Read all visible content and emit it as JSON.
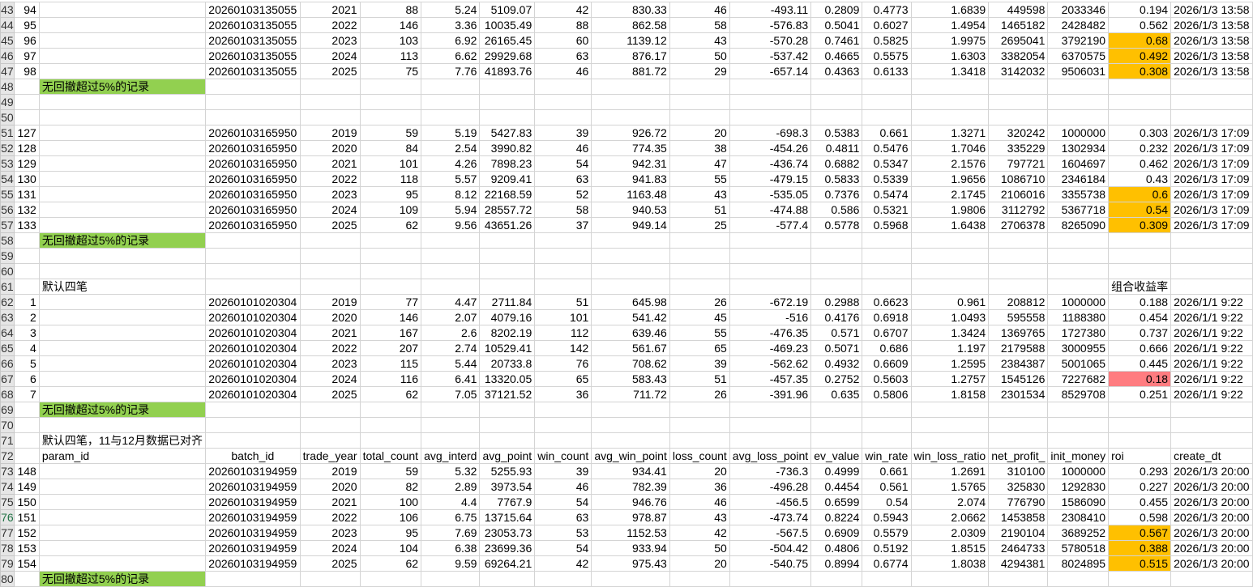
{
  "active_row": "76",
  "colors": {
    "label_fill": "#92D050",
    "orange_fill": "#FFC000",
    "red_fill": "#FF7C80"
  },
  "columns": [
    "A",
    "B",
    "C",
    "D",
    "E",
    "F",
    "G",
    "H",
    "I",
    "J",
    "K",
    "L",
    "M",
    "N",
    "O",
    "P",
    "Q",
    "R"
  ],
  "rows": [
    {
      "n": "43",
      "c": [
        "94",
        "",
        "20260103135055",
        "2021",
        "88",
        "5.24",
        "5109.07",
        "42",
        "830.33",
        "46",
        "-493.11",
        "0.2809",
        "0.4773",
        "1.6839",
        "449598",
        "2033346",
        "0.194",
        "2026/1/3 13:58"
      ]
    },
    {
      "n": "44",
      "c": [
        "95",
        "",
        "20260103135055",
        "2022",
        "146",
        "3.36",
        "10035.49",
        "88",
        "862.58",
        "58",
        "-576.83",
        "0.5041",
        "0.6027",
        "1.4954",
        "1465182",
        "2428482",
        "0.562",
        "2026/1/3 13:58"
      ]
    },
    {
      "n": "45",
      "c": [
        "96",
        "",
        "20260103135055",
        "2023",
        "103",
        "6.92",
        "26165.45",
        "60",
        "1139.12",
        "43",
        "-570.28",
        "0.7461",
        "0.5825",
        "1.9975",
        "2695041",
        "3792190",
        "0.68",
        "2026/1/3 13:58"
      ],
      "fill": {
        "Q": "orange"
      }
    },
    {
      "n": "46",
      "c": [
        "97",
        "",
        "20260103135055",
        "2024",
        "113",
        "6.62",
        "29929.68",
        "63",
        "876.17",
        "50",
        "-537.42",
        "0.4665",
        "0.5575",
        "1.6303",
        "3382054",
        "6370575",
        "0.492",
        "2026/1/3 13:58"
      ],
      "fill": {
        "Q": "orange"
      }
    },
    {
      "n": "47",
      "c": [
        "98",
        "",
        "20260103135055",
        "2025",
        "75",
        "7.76",
        "41893.76",
        "46",
        "881.72",
        "29",
        "-657.14",
        "0.4363",
        "0.6133",
        "1.3418",
        "3142032",
        "9506031",
        "0.308",
        "2026/1/3 13:58"
      ],
      "fill": {
        "Q": "orange"
      }
    },
    {
      "n": "48",
      "c": [
        "",
        "无回撤超过5%的记录",
        "",
        "",
        "",
        "",
        "",
        "",
        "",
        "",
        "",
        "",
        "",
        "",
        "",
        "",
        "",
        ""
      ],
      "fill": {
        "B": "label"
      }
    },
    {
      "n": "49",
      "c": [
        "",
        "",
        "",
        "",
        "",
        "",
        "",
        "",
        "",
        "",
        "",
        "",
        "",
        "",
        "",
        "",
        "",
        ""
      ]
    },
    {
      "n": "50",
      "c": [
        "",
        "",
        "",
        "",
        "",
        "",
        "",
        "",
        "",
        "",
        "",
        "",
        "",
        "",
        "",
        "",
        "",
        ""
      ]
    },
    {
      "n": "51",
      "c": [
        "127",
        "",
        "20260103165950",
        "2019",
        "59",
        "5.19",
        "5427.83",
        "39",
        "926.72",
        "20",
        "-698.3",
        "0.5383",
        "0.661",
        "1.3271",
        "320242",
        "1000000",
        "0.303",
        "2026/1/3 17:09"
      ]
    },
    {
      "n": "52",
      "c": [
        "128",
        "",
        "20260103165950",
        "2020",
        "84",
        "2.54",
        "3990.82",
        "46",
        "774.35",
        "38",
        "-454.26",
        "0.4811",
        "0.5476",
        "1.7046",
        "335229",
        "1302934",
        "0.232",
        "2026/1/3 17:09"
      ]
    },
    {
      "n": "53",
      "c": [
        "129",
        "",
        "20260103165950",
        "2021",
        "101",
        "4.26",
        "7898.23",
        "54",
        "942.31",
        "47",
        "-436.74",
        "0.6882",
        "0.5347",
        "2.1576",
        "797721",
        "1604697",
        "0.462",
        "2026/1/3 17:09"
      ]
    },
    {
      "n": "54",
      "c": [
        "130",
        "",
        "20260103165950",
        "2022",
        "118",
        "5.57",
        "9209.41",
        "63",
        "941.83",
        "55",
        "-479.15",
        "0.5833",
        "0.5339",
        "1.9656",
        "1086710",
        "2346184",
        "0.43",
        "2026/1/3 17:09"
      ]
    },
    {
      "n": "55",
      "c": [
        "131",
        "",
        "20260103165950",
        "2023",
        "95",
        "8.12",
        "22168.59",
        "52",
        "1163.48",
        "43",
        "-535.05",
        "0.7376",
        "0.5474",
        "2.1745",
        "2106016",
        "3355738",
        "0.6",
        "2026/1/3 17:09"
      ],
      "fill": {
        "Q": "orange"
      }
    },
    {
      "n": "56",
      "c": [
        "132",
        "",
        "20260103165950",
        "2024",
        "109",
        "5.94",
        "28557.72",
        "58",
        "940.53",
        "51",
        "-474.88",
        "0.586",
        "0.5321",
        "1.9806",
        "3112792",
        "5367718",
        "0.54",
        "2026/1/3 17:09"
      ],
      "fill": {
        "Q": "orange"
      }
    },
    {
      "n": "57",
      "c": [
        "133",
        "",
        "20260103165950",
        "2025",
        "62",
        "9.56",
        "43651.26",
        "37",
        "949.14",
        "25",
        "-577.4",
        "0.5778",
        "0.5968",
        "1.6438",
        "2706378",
        "8265090",
        "0.309",
        "2026/1/3 17:09"
      ],
      "fill": {
        "Q": "orange"
      }
    },
    {
      "n": "58",
      "c": [
        "",
        "无回撤超过5%的记录",
        "",
        "",
        "",
        "",
        "",
        "",
        "",
        "",
        "",
        "",
        "",
        "",
        "",
        "",
        "",
        ""
      ],
      "fill": {
        "B": "label"
      }
    },
    {
      "n": "59",
      "c": [
        "",
        "",
        "",
        "",
        "",
        "",
        "",
        "",
        "",
        "",
        "",
        "",
        "",
        "",
        "",
        "",
        "",
        ""
      ]
    },
    {
      "n": "60",
      "c": [
        "",
        "",
        "",
        "",
        "",
        "",
        "",
        "",
        "",
        "",
        "",
        "",
        "",
        "",
        "",
        "",
        "",
        ""
      ]
    },
    {
      "n": "61",
      "c": [
        "",
        "默认四笔",
        "",
        "",
        "",
        "",
        "",
        "",
        "",
        "",
        "",
        "",
        "",
        "",
        "",
        "",
        "组合收益率",
        ""
      ]
    },
    {
      "n": "62",
      "c": [
        "1",
        "",
        "20260101020304",
        "2019",
        "77",
        "4.47",
        "2711.84",
        "51",
        "645.98",
        "26",
        "-672.19",
        "0.2988",
        "0.6623",
        "0.961",
        "208812",
        "1000000",
        "0.188",
        "2026/1/1 9:22"
      ]
    },
    {
      "n": "63",
      "c": [
        "2",
        "",
        "20260101020304",
        "2020",
        "146",
        "2.07",
        "4079.16",
        "101",
        "541.42",
        "45",
        "-516",
        "0.4176",
        "0.6918",
        "1.0493",
        "595558",
        "1188380",
        "0.454",
        "2026/1/1 9:22"
      ]
    },
    {
      "n": "64",
      "c": [
        "3",
        "",
        "20260101020304",
        "2021",
        "167",
        "2.6",
        "8202.19",
        "112",
        "639.46",
        "55",
        "-476.35",
        "0.571",
        "0.6707",
        "1.3424",
        "1369765",
        "1727380",
        "0.737",
        "2026/1/1 9:22"
      ]
    },
    {
      "n": "65",
      "c": [
        "4",
        "",
        "20260101020304",
        "2022",
        "207",
        "2.74",
        "10529.41",
        "142",
        "561.67",
        "65",
        "-469.23",
        "0.5071",
        "0.686",
        "1.197",
        "2179588",
        "3000955",
        "0.666",
        "2026/1/1 9:22"
      ]
    },
    {
      "n": "66",
      "c": [
        "5",
        "",
        "20260101020304",
        "2023",
        "115",
        "5.44",
        "20733.8",
        "76",
        "708.62",
        "39",
        "-562.62",
        "0.4932",
        "0.6609",
        "1.2595",
        "2384387",
        "5001065",
        "0.445",
        "2026/1/1 9:22"
      ]
    },
    {
      "n": "67",
      "c": [
        "6",
        "",
        "20260101020304",
        "2024",
        "116",
        "6.41",
        "13320.05",
        "65",
        "583.43",
        "51",
        "-457.35",
        "0.2752",
        "0.5603",
        "1.2757",
        "1545126",
        "7227682",
        "0.18",
        "2026/1/1 9:22"
      ],
      "fill": {
        "Q": "red"
      }
    },
    {
      "n": "68",
      "c": [
        "7",
        "",
        "20260101020304",
        "2025",
        "62",
        "7.05",
        "37121.52",
        "36",
        "711.72",
        "26",
        "-391.96",
        "0.635",
        "0.5806",
        "1.8158",
        "2301534",
        "8529708",
        "0.251",
        "2026/1/1 9:22"
      ]
    },
    {
      "n": "69",
      "c": [
        "",
        "无回撤超过5%的记录",
        "",
        "",
        "",
        "",
        "",
        "",
        "",
        "",
        "",
        "",
        "",
        "",
        "",
        "",
        "",
        ""
      ],
      "fill": {
        "B": "label"
      }
    },
    {
      "n": "70",
      "c": [
        "",
        "",
        "",
        "",
        "",
        "",
        "",
        "",
        "",
        "",
        "",
        "",
        "",
        "",
        "",
        "",
        "",
        ""
      ]
    },
    {
      "n": "71",
      "c": [
        "",
        "默认四笔，11与12月数据已对齐",
        "",
        "",
        "",
        "",
        "",
        "",
        "",
        "",
        "",
        "",
        "",
        "",
        "",
        "",
        "",
        ""
      ]
    },
    {
      "n": "72",
      "c": [
        "",
        "param_id",
        "batch_id",
        "trade_year",
        "total_count",
        "avg_interd",
        "avg_point",
        "win_count",
        "avg_win_point",
        "loss_count",
        "avg_loss_point",
        "ev_value",
        "win_rate",
        "win_loss_ratio",
        "net_profit_",
        "init_money",
        "roi",
        "create_dt"
      ],
      "header": true
    },
    {
      "n": "73",
      "c": [
        "148",
        "",
        "20260103194959",
        "2019",
        "59",
        "5.32",
        "5255.93",
        "39",
        "934.41",
        "20",
        "-736.3",
        "0.4999",
        "0.661",
        "1.2691",
        "310100",
        "1000000",
        "0.293",
        "2026/1/3 20:00"
      ]
    },
    {
      "n": "74",
      "c": [
        "149",
        "",
        "20260103194959",
        "2020",
        "82",
        "2.89",
        "3973.54",
        "46",
        "782.39",
        "36",
        "-496.28",
        "0.4454",
        "0.561",
        "1.5765",
        "325830",
        "1292830",
        "0.227",
        "2026/1/3 20:00"
      ]
    },
    {
      "n": "75",
      "c": [
        "150",
        "",
        "20260103194959",
        "2021",
        "100",
        "4.4",
        "7767.9",
        "54",
        "946.76",
        "46",
        "-456.5",
        "0.6599",
        "0.54",
        "2.074",
        "776790",
        "1586090",
        "0.455",
        "2026/1/3 20:00"
      ]
    },
    {
      "n": "76",
      "c": [
        "151",
        "",
        "20260103194959",
        "2022",
        "106",
        "6.75",
        "13715.64",
        "63",
        "978.87",
        "43",
        "-473.74",
        "0.8224",
        "0.5943",
        "2.0662",
        "1453858",
        "2308410",
        "0.598",
        "2026/1/3 20:00"
      ]
    },
    {
      "n": "77",
      "c": [
        "152",
        "",
        "20260103194959",
        "2023",
        "95",
        "7.69",
        "23053.73",
        "53",
        "1152.53",
        "42",
        "-567.5",
        "0.6909",
        "0.5579",
        "2.0309",
        "2190104",
        "3689252",
        "0.567",
        "2026/1/3 20:00"
      ],
      "fill": {
        "Q": "orange"
      }
    },
    {
      "n": "78",
      "c": [
        "153",
        "",
        "20260103194959",
        "2024",
        "104",
        "6.38",
        "23699.36",
        "54",
        "933.94",
        "50",
        "-504.42",
        "0.4806",
        "0.5192",
        "1.8515",
        "2464733",
        "5780518",
        "0.388",
        "2026/1/3 20:00"
      ],
      "fill": {
        "Q": "orange"
      }
    },
    {
      "n": "79",
      "c": [
        "154",
        "",
        "20260103194959",
        "2025",
        "62",
        "9.59",
        "69264.21",
        "42",
        "975.43",
        "20",
        "-540.75",
        "0.8994",
        "0.6774",
        "1.8038",
        "4294381",
        "8024895",
        "0.515",
        "2026/1/3 20:00"
      ],
      "fill": {
        "Q": "orange"
      }
    },
    {
      "n": "80",
      "c": [
        "",
        "无回撤超过5%的记录",
        "",
        "",
        "",
        "",
        "",
        "",
        "",
        "",
        "",
        "",
        "",
        "",
        "",
        "",
        "",
        ""
      ],
      "fill": {
        "B": "label"
      }
    }
  ]
}
